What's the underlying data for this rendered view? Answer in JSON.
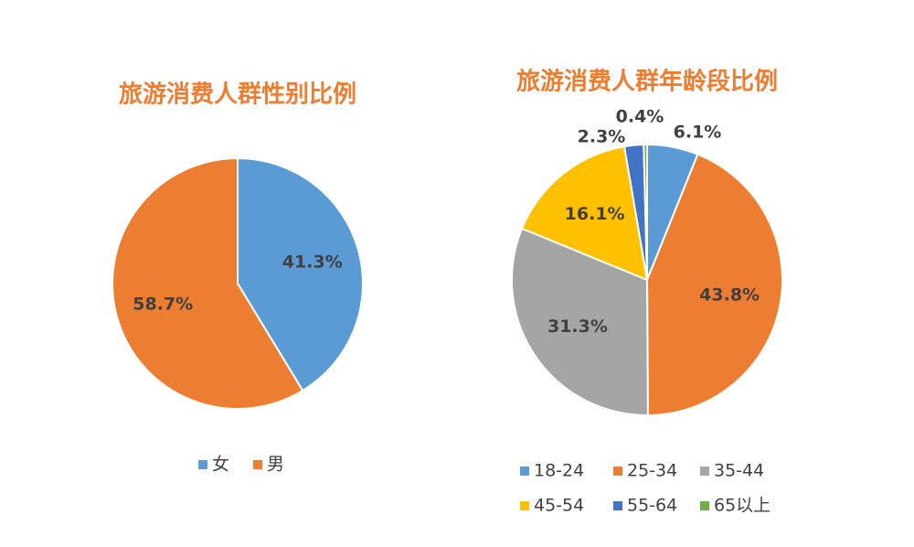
{
  "chart_data": [
    {
      "type": "pie",
      "title": "旅游消费人群性别比例",
      "categories": [
        "女",
        "男"
      ],
      "values": [
        41.3,
        58.7
      ],
      "value_labels": [
        "41.3%",
        "58.7%"
      ],
      "colors": [
        "#5b9bd5",
        "#ed7d31"
      ]
    },
    {
      "type": "pie",
      "title": "旅游消费人群年龄段比例",
      "categories": [
        "18-24",
        "25-34",
        "35-44",
        "45-54",
        "55-64",
        "65以上"
      ],
      "values": [
        6.1,
        43.8,
        31.3,
        16.1,
        2.3,
        0.4
      ],
      "value_labels": [
        "6.1%",
        "43.8%",
        "31.3%",
        "16.1%",
        "2.3%",
        "0.4%"
      ],
      "colors": [
        "#5b9bd5",
        "#ed7d31",
        "#a5a5a5",
        "#ffc000",
        "#4472c4",
        "#70ad47"
      ]
    }
  ]
}
